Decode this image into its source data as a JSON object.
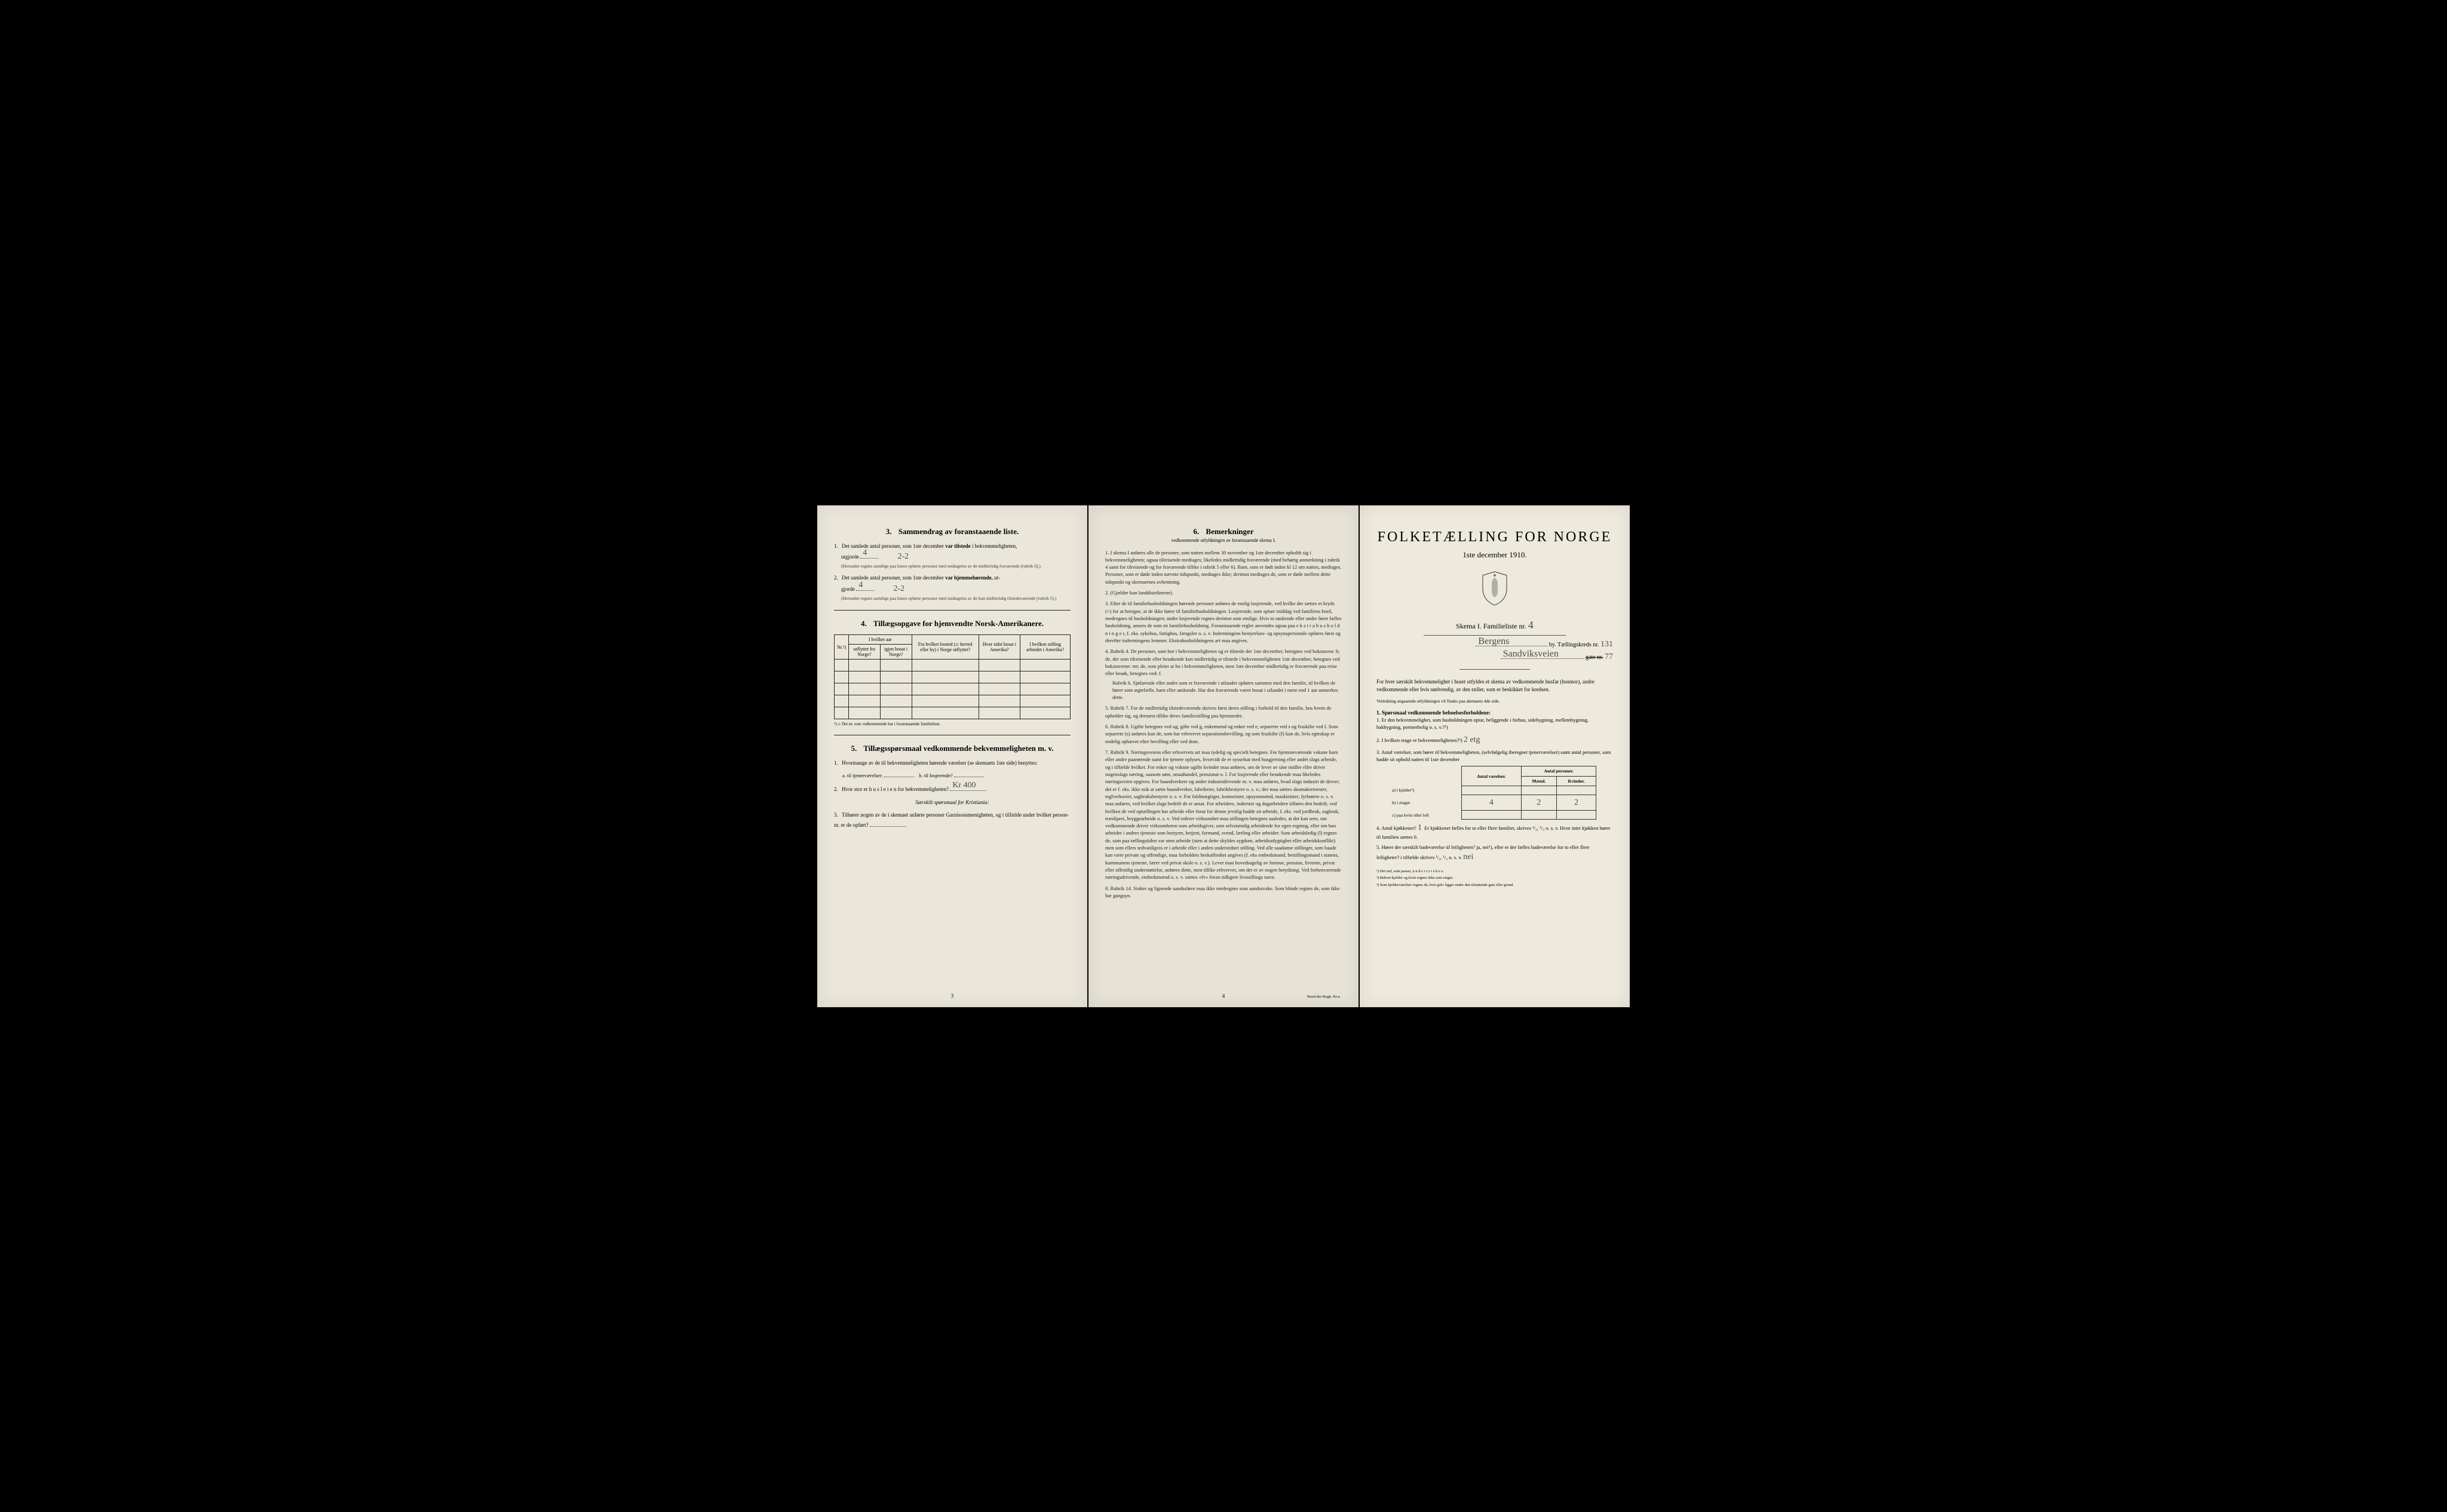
{
  "page1": {
    "section3": {
      "title": "Sammendrag av foranstaaende liste.",
      "num": "3.",
      "q1": {
        "num": "1.",
        "text_a": "Det samlede antal personer, som 1ste december",
        "bold": "var tilstede",
        "text_b": "i bekvemmeligheten,",
        "text_c": "utgjorde",
        "value": "4",
        "extra": "2-2",
        "fine": "(Herunder regnes samtlige paa listen opførte personer med undtagelse av de midlertidig fraværende [rubrik 6].)"
      },
      "q2": {
        "num": "2.",
        "text_a": "Det samlede antal personer, som 1ste december",
        "bold": "var hjemmehørende,",
        "text_b": "ut-",
        "text_c": "gjorde",
        "value": "4",
        "extra": "2-2",
        "fine": "(Herunder regnes samtlige paa listen opførte personer med undtagelse av de kun midlertidig tilstedeværende [rubrik 5].)"
      }
    },
    "section4": {
      "title": "Tillægsopgave for hjemvendte Norsk-Amerikanere.",
      "num": "4.",
      "headers": {
        "nr": "Nr.¹)",
        "col1_top": "I hvilket aar",
        "col1a": "utflyttet fra Norge?",
        "col1b": "igjen bosat i Norge?",
        "col2": "Fra hvilket bosted (ɔ: herred eller by) i Norge utflyttet?",
        "col3": "Hvor sidst bosat i Amerika?",
        "col4": "I hvilken stilling arbeidet i Amerika?"
      },
      "footnote": "¹) ɔ: Det nr. som vedkommende har i foranstaaende familieliste."
    },
    "section5": {
      "title": "Tillægsspørsmaal vedkommende bekvemmeligheten m. v.",
      "num": "5.",
      "q1": {
        "num": "1.",
        "text": "Hvormange av de til bekvemmeligheten hørende værelser (se skemaets 1ste side) benyttes:",
        "sub_a": "a. til tjenerværelser:",
        "sub_b": "b. til losjerende?"
      },
      "q2": {
        "num": "2.",
        "text": "Hvor stor er h u s l e i e n for bekvemmeligheten?",
        "value": "Kr 400"
      },
      "special": "Særskilt spørsmaal for Kristiania:",
      "q3": {
        "num": "3.",
        "text": "Tilhører nogen av de i skemaet anførte personer Garnisonsmenigheten, og i tilfælde under hvilket person-nr. er de opført?"
      }
    },
    "page_num": "3"
  },
  "page2": {
    "section6": {
      "title": "Bemerkninger",
      "num": "6.",
      "subtitle": "vedkommende utfyldningen av foranstaaende skema I.",
      "items": [
        {
          "num": "1.",
          "text": "I skema I anføres alle de personer, som natten mellem 30 november og 1ste december opholdt sig i bekvemmeligheten; ogsaa tilreisende medtages; likeledes midlertidig fraværende (med behørig anmerkning i rubrik 4 samt for tilreisende og for fraværende tillike i rubrik 5 eller 6). Barn, som er født inden kl 12 om natten, medtages. Personer, som er døde inden nævnte tidspunkt, medtages ikke; derimot medtages de, som er døde mellem dette tidspunkt og skemaernes avhentning."
        },
        {
          "num": "2.",
          "text": "(Gjælder kun landdistrikterne)."
        },
        {
          "num": "3.",
          "text": "Efter de til familiehusholdningen hørende personer anføres de enslig losjerende, ved hvilke der sættes et kryds (×) for at betegne, at de ikke hører til familiehusholdningen. Losjerende, som spiser middag ved familiens bord, medregnes til husholdningen; andre losjerende regnes derimot som enslige. Hvis to søskende eller andre fører fælles husholdning, ansees de som en familiehusholdning. Foranstaaende regler anvendes ogsaa paa e k s t r a h u s h o l d n i n g e r, f. eks. sykehus, fattighus, fængsler o. s. v. Indretningens bestyrelses- og opsynspersonale opføres først og derefter indretningens lemmer. Ekstrahusholdningens art maa angives."
        },
        {
          "num": "4.",
          "text": "Rubrik 4. De personer, som bor i bekvemmeligheten og er tilstede der 1ste december, betegnes ved bokstaven: b; de, der som tilreisende eller besøkende kun midlertidig er tilstede i bekvemmeligheten 1ste december, betegnes ved bokstaverne: mt; de, som pleier at bo i bekvemmeligheten, men 1ste december midlertidig er fraværende paa reise eller besøk, betegnes ved: f.",
          "sub": "Rubrik 6. Sjøfarende eller andre som er fraværende i utlandet opføres sammen med den familie, til hvilken de hører som ægtefælle, barn eller søskende. Har den fraværende været bosat i utlandet i mere end 1 aar anmerkes dette."
        },
        {
          "num": "5.",
          "text": "Rubrik 7. For de midlertidig tilstedeværende skrives først deres stilling i forhold til den familie, hos hvem de opholder sig, og dernæst tillike deres familiestilling paa hjemstedet."
        },
        {
          "num": "6.",
          "text": "Rubrik 8. Ugifte betegnes ved ug, gifte ved g, enkemænd og enker ved e, separerte ved s og fraskilte ved f. Som separerte (s) anføres kun de, som har erhvervet separationsbevilling, og som fraskilte (f) kun de, hvis egteskap er endelig ophævet efter bevilling eller ved dom."
        },
        {
          "num": "7.",
          "text": "Rubrik 9. Næringsveiens eller erhvervets art maa tydelig og specielt betegnes. For hjemmeværende voksne barn eller andre paarørende samt for tjenere oplyses, hvorvidt de er sysselsat med husgjerning eller andet slags arbeide, og i tilfælde hvilket. For enker og voksne ugifte kvinder maa anføres, om de lever av sine midler eller driver nogenslags næring, saasom søm, smaahandel, pensionat o. l. For losjerende eller besøkende maa likeledes næringsveien opgives. For haandverkere og andre industridrivende m. v. maa anføres, hvad slags industri de driver; det er f. eks. ikke nok at sætte haandverker, fabrikeier, fabrikbestyrer o. s. v.; der maa sættes skomakermester, teglverkseier, sagbruksbestyrer o. s. v. For fuldmægtiger, kontorister, opsynsmænd, maskinister, fyrbøtere o. s. v. maa anføres, ved hvilket slags bedrift de er ansat. For arbeidere, inderster og dagarbeidere tilføies den bedrift, ved hvilken de ved optællingen har arbeide eller forut for denne jevnlig hadde sit arbeide, f. eks. ved jordbruk, sagbruk, træsliperi, bryggearbeide o. s. v. Ved enhver virksomhet maa stillingen betegnes saaledes, at det kan sees, om vedkommende driver virksomheten som arbeidsgiver, som selvstændig arbeidende for egen regning, eller om han arbeider i andres tjeneste som bestyrer, betjent, formand, svend, lærling eller arbeider. Som arbeidsledig (l) regnes de, som paa tællingstiden var uten arbeide (uten at dette skyldes sygdom, arbeidsudygtighet eller arbeidskonflikt) men som ellers sedvanligvis er i arbeide eller i anden underordnet stilling. Ved alle saadanne stillinger, som baade kan være private og offentlige, maa forholdets beskaffenhet angives (f. eks embedsmand, bestillingsmand i statens, kommunens tjeneste, lærer ved privat skole o. s. v.). Lever man hovedsagelig av formue, pension, livrente, privat eller offentlig understøttelse, anføres dette, men tillike erhvervet, om det er av nogen betydning. Ved forhenværende næringsdrivende, embedsmænd o. s. v. sættes «fv» foran tidligere livsstillings navn."
        },
        {
          "num": "8.",
          "text": "Rubrik 14. Sinker og lignende aandssløve maa ikke medregnes som aandssvake. Som blinde regnes de, som ikke har gangsyn."
        }
      ]
    },
    "page_num": "4",
    "printer": "Steen'ske Bogtr. Kr.a."
  },
  "page3": {
    "main_title": "FOLKETÆLLING FOR NORGE",
    "date": "1ste december 1910.",
    "skema": "Skema I.   Familieliste nr.",
    "skema_value": "4",
    "city_label": "by.  Tællingskreds nr.",
    "city_value": "Bergens",
    "kreds_value": "131",
    "gate_label": "gate nr.",
    "gate_value": "Sandviksveien",
    "gate_num": "77",
    "instructions_lead": "For hver særskilt bekvemmelighet i huset utfyldes et skema av vedkommende husfar (husmor), andre vedkommende eller hvis nødvendig, av den tæller, som er beskikket for kredsen.",
    "instructions_fine": "Veiledning angaaende utfyldningen vil findes paa skemaets 4de side.",
    "section1": {
      "num": "1.",
      "title": "Spørsmaal vedkommende beboelsesforholdene:",
      "q1": {
        "num": "1.",
        "text": "Er den bekvemmelighet, som husholdningen optar, beliggende i forhus, sidebygning, mellembygning, bakbygning, portnerbolig o. s. v.?¹)"
      },
      "q2": {
        "num": "2.",
        "text": "I hvilken etage er bekvemmeligheten?²)",
        "value": "2 etg"
      },
      "q3": {
        "num": "3.",
        "text": "Antal værelser, som hører til bekvemmeligheten, (selvfølgelig iberegnet tjenerværelser) samt antal personer, som hadde sit ophold natten til 1ste december"
      },
      "table": {
        "h1": "Antal værelser.",
        "h2": "Antal personer.",
        "h2a": "Mænd.",
        "h2b": "Kvinder.",
        "r1_label": "a) i kjelder³)",
        "r2_label": "b) i etager",
        "r2_v": "4",
        "r2_m": "2",
        "r2_k": "2",
        "r3_label": "c) paa kvist eller loft"
      },
      "q4": {
        "num": "4.",
        "text": "Antal kjøkkener?",
        "value": "1",
        "text2": "Er kjøkkenet fælles for to eller flere familier, skrives ¹/₂, ¹/₃ o. s. v.  Hvor intet kjøkken hører til familien sættes 0."
      },
      "q5": {
        "num": "5.",
        "text": "Hører der særskilt badeværelse til leiligheten?  ja, nei¹), eller er der fælles badeværelse for to eller flere leiligheter?  i tilfælde skrives ¹/₂, ¹/₃ o. s. v.",
        "value": "nei"
      }
    },
    "footnotes": {
      "f1": "¹) Det ord, som passer, u n d e r s t r e k e s.",
      "f2": "²) Beboet kjelder og kvist regnes ikke som etager.",
      "f3": "³) Som kjelderværelser regnes de, hvis gulv ligger under den tilstøtende gate eller grund."
    }
  }
}
